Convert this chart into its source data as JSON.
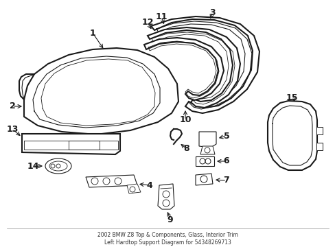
{
  "title": "2002 BMW Z8 Top & Components, Glass, Interior Trim\nLeft Hardtop Support Diagram for 54348269713",
  "background_color": "#ffffff",
  "line_color": "#1a1a1a",
  "figsize": [
    4.89,
    3.6
  ],
  "dpi": 100
}
